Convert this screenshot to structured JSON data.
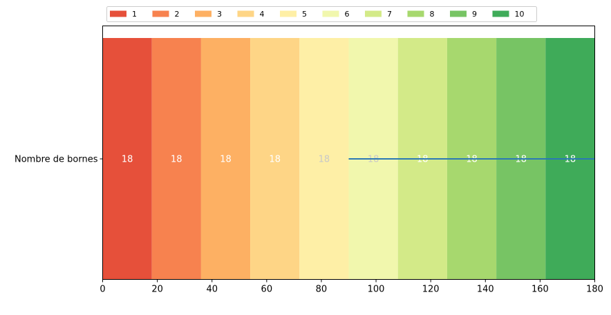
{
  "chart_data": {
    "type": "bar",
    "orientation": "horizontal",
    "stacked": true,
    "categories": [
      "Nombre de bornes"
    ],
    "series": [
      {
        "name": "1",
        "values": [
          18
        ],
        "color": "#e6503a"
      },
      {
        "name": "2",
        "values": [
          18
        ],
        "color": "#f7824f"
      },
      {
        "name": "3",
        "values": [
          18
        ],
        "color": "#fdb063"
      },
      {
        "name": "4",
        "values": [
          18
        ],
        "color": "#fed586"
      },
      {
        "name": "5",
        "values": [
          18
        ],
        "color": "#feefa6"
      },
      {
        "name": "6",
        "values": [
          18
        ],
        "color": "#f1f7ad"
      },
      {
        "name": "7",
        "values": [
          18
        ],
        "color": "#d3ea88"
      },
      {
        "name": "8",
        "values": [
          18
        ],
        "color": "#a7d86e"
      },
      {
        "name": "9",
        "values": [
          18
        ],
        "color": "#77c464"
      },
      {
        "name": "10",
        "values": [
          18
        ],
        "color": "#3fab59"
      }
    ],
    "data_label_colors": [
      "#ffffff",
      "#ffffff",
      "#ffffff",
      "#ffffff",
      "#c8c8c8",
      "#c8c8c8",
      "#ffffff",
      "#ffffff",
      "#ffffff",
      "#ffffff"
    ],
    "xlim": [
      0,
      180
    ],
    "xticks": [
      0,
      20,
      40,
      60,
      80,
      100,
      120,
      140,
      160,
      180
    ],
    "overlay_line": {
      "x": [
        90,
        180
      ],
      "y": "Nombre de bornes",
      "color": "#2a78b5"
    },
    "title": "",
    "xlabel": "",
    "ylabel": "",
    "legend": {
      "position": "top",
      "columns": 10
    },
    "grid": false
  }
}
